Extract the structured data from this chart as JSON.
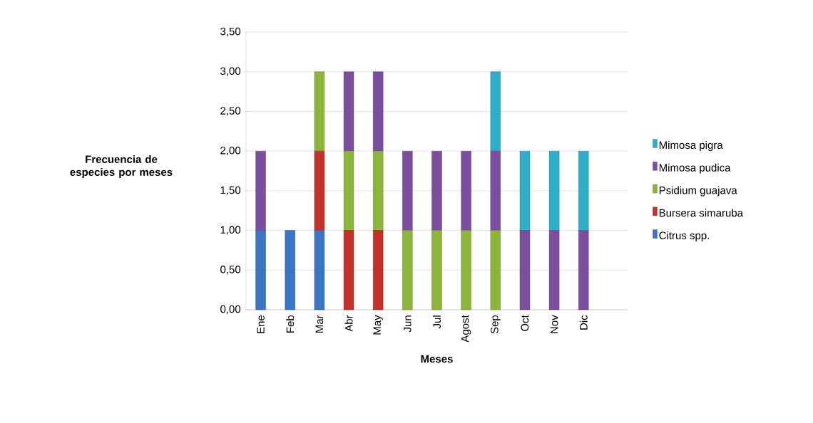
{
  "chart_data": {
    "type": "bar",
    "stacked": true,
    "xlabel": "Meses",
    "ylabel": "Frecuencia de especies por meses",
    "categories": [
      "Ene",
      "Feb",
      "Mar",
      "Abr",
      "May",
      "Jun",
      "Jul",
      "Agost",
      "Sep",
      "Oct",
      "Nov",
      "Dic",
      null
    ],
    "series": [
      {
        "name": "Citrus spp.",
        "color": "#3b74c2",
        "values": [
          1,
          1,
          1,
          null,
          null,
          null,
          null,
          null,
          null,
          null,
          null,
          null,
          null
        ]
      },
      {
        "name": "Bursera simaruba",
        "color": "#c4302a",
        "values": [
          null,
          null,
          1,
          1,
          1,
          null,
          null,
          null,
          null,
          null,
          null,
          null,
          null
        ]
      },
      {
        "name": "Psidium guajava",
        "color": "#8db53c",
        "values": [
          null,
          null,
          1,
          1,
          1,
          1,
          1,
          1,
          1,
          null,
          null,
          null,
          null
        ]
      },
      {
        "name": "Mimosa pudica",
        "color": "#7b4f9e",
        "values": [
          1,
          null,
          null,
          1,
          1,
          1,
          1,
          1,
          1,
          1,
          1,
          1,
          null
        ]
      },
      {
        "name": "Mimosa pigra",
        "color": "#2eaec8",
        "values": [
          null,
          null,
          null,
          null,
          null,
          null,
          null,
          null,
          1,
          1,
          1,
          1,
          null
        ]
      }
    ],
    "ylim": [
      0,
      3.5
    ],
    "yticks": [
      {
        "value": 0,
        "label": "0,00"
      },
      {
        "value": 0.5,
        "label": "0,50"
      },
      {
        "value": 1,
        "label": "1,00"
      },
      {
        "value": 1.5,
        "label": "1,50"
      },
      {
        "value": 2,
        "label": "2,00"
      },
      {
        "value": 2.5,
        "label": "2,50"
      },
      {
        "value": 3,
        "label": "3,00"
      },
      {
        "value": 3.5,
        "label": "3,50"
      }
    ],
    "grid": "y",
    "legend": "right"
  }
}
